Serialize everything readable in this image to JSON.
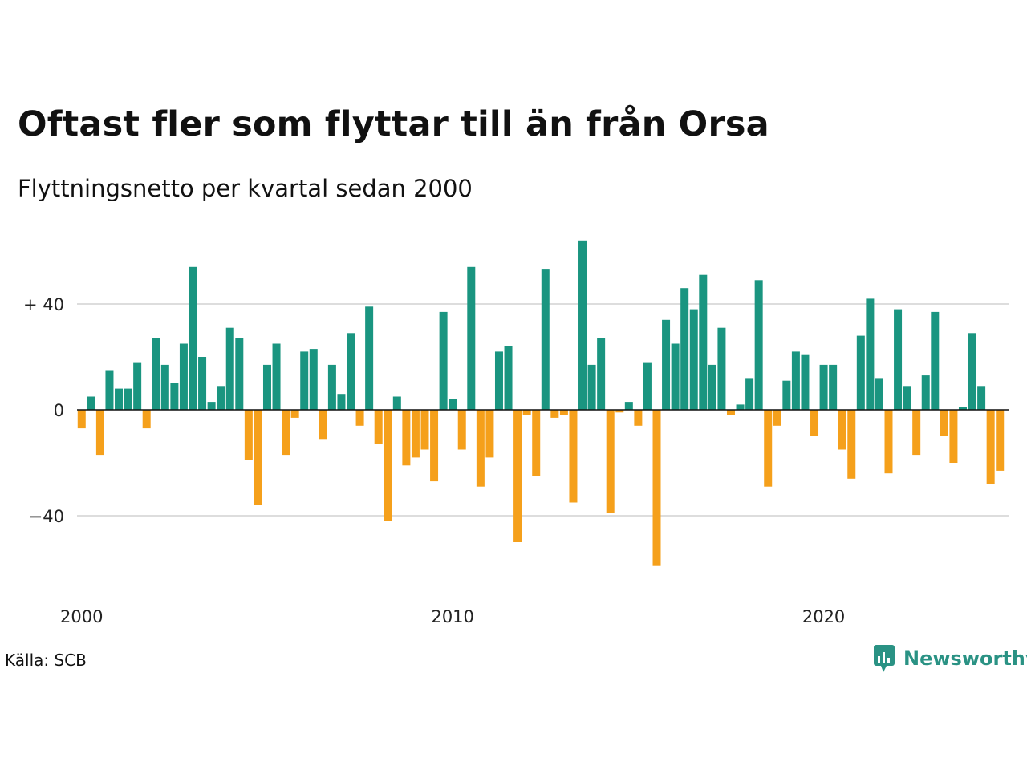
{
  "header": {
    "title": "Oftast fler som flyttar till än från Orsa",
    "subtitle": "Flyttningsnetto per kvartal sedan 2000"
  },
  "footer": {
    "source": "Källa: SCB",
    "brand": "Newsworthy"
  },
  "colors": {
    "positive": "#1a9580",
    "negative": "#f5a01b",
    "grid": "#dddddd",
    "brand": "#2a9284"
  },
  "chart_data": {
    "type": "bar",
    "x_start": "2000 Q1",
    "ylim": [
      -62,
      66
    ],
    "y_ticks": [
      {
        "value": 40,
        "label": "+ 40"
      },
      {
        "value": 0,
        "label": "0"
      },
      {
        "value": -40,
        "label": "−40"
      }
    ],
    "x_ticks": [
      {
        "year": 2000,
        "label": "2000"
      },
      {
        "year": 2010,
        "label": "2010"
      },
      {
        "year": 2020,
        "label": "2020"
      }
    ],
    "values": [
      -7,
      5,
      -17,
      15,
      8,
      8,
      18,
      -7,
      27,
      17,
      10,
      25,
      54,
      20,
      3,
      9,
      31,
      27,
      -19,
      -36,
      17,
      25,
      -17,
      -3,
      22,
      23,
      -11,
      17,
      6,
      29,
      -6,
      39,
      -13,
      -42,
      5,
      -21,
      -18,
      -15,
      -27,
      37,
      4,
      -15,
      54,
      -29,
      -18,
      22,
      24,
      -50,
      -2,
      -25,
      53,
      -3,
      -2,
      -35,
      64,
      17,
      27,
      -39,
      -1,
      3,
      -6,
      18,
      -59,
      34,
      25,
      46,
      38,
      51,
      17,
      31,
      -2,
      2,
      12,
      49,
      -29,
      -6,
      11,
      22,
      21,
      -10,
      17,
      17,
      -15,
      -26,
      28,
      42,
      12,
      -24,
      38,
      9,
      -17,
      13,
      37,
      -10,
      -20,
      1,
      29,
      9,
      -28,
      -23
    ]
  }
}
